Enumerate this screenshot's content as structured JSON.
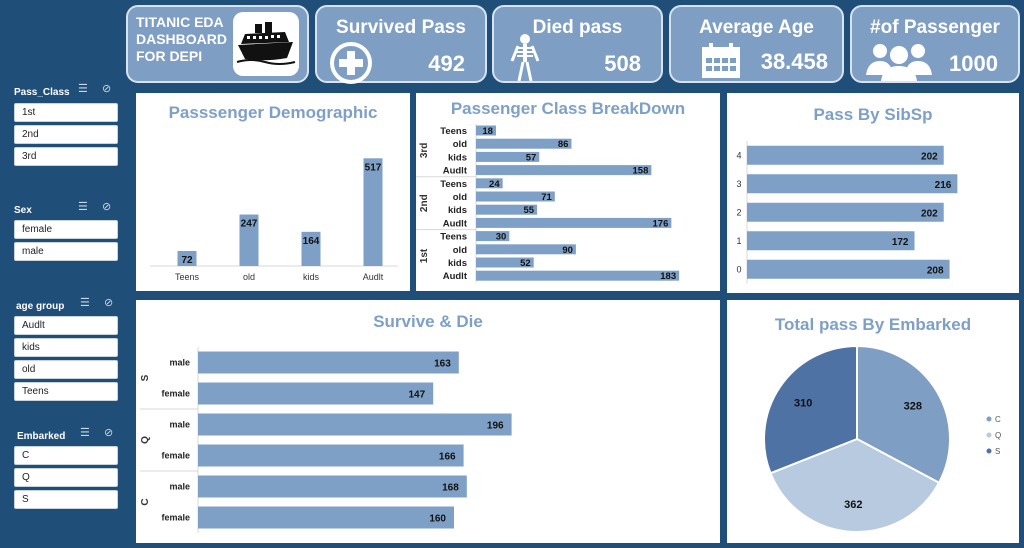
{
  "header": {
    "title_lines": [
      "TITANIC EDA",
      "DASHBOARD",
      "FOR DEPI"
    ],
    "ship_icon": "cruise-ship-icon"
  },
  "kpis": [
    {
      "label": "Survived Pass",
      "value": "492",
      "icon": "medical-cross-icon"
    },
    {
      "label": "Died pass",
      "value": "508",
      "icon": "skeleton-icon"
    },
    {
      "label": "Average Age",
      "value": "38.458",
      "icon": "calendar-icon"
    },
    {
      "label": "#of Passenger",
      "value": "1000",
      "icon": "people-group-icon"
    }
  ],
  "slicers": [
    {
      "title": "Pass_Class",
      "items": [
        "1st",
        "2nd",
        "3rd"
      ]
    },
    {
      "title": "Sex",
      "items": [
        "female",
        "male"
      ]
    },
    {
      "title": "age group",
      "items": [
        "Audlt",
        "kids",
        "old",
        "Teens"
      ]
    },
    {
      "title": "Embarked",
      "items": [
        "C",
        "Q",
        "S"
      ]
    }
  ],
  "colors": {
    "background": "#1f4e79",
    "card": "#7f9ec3",
    "bar": "#7fa0c6",
    "title": "#7fa0c6",
    "pie": [
      "#7f9ec3",
      "#b7cae0",
      "#4f72a5"
    ]
  },
  "chart_data": [
    {
      "type": "bar",
      "title": "Passsenger Demographic",
      "categories": [
        "Teens",
        "old",
        "kids",
        "Audlt"
      ],
      "values": [
        72,
        247,
        164,
        517
      ],
      "ylim": [
        0,
        600
      ]
    },
    {
      "type": "bar",
      "orientation": "horizontal",
      "title": "Passenger Class BreakDown",
      "groups": [
        {
          "name": "3rd",
          "categories": [
            "Teens",
            "old",
            "kids",
            "Audlt"
          ],
          "values": [
            18,
            86,
            57,
            158
          ]
        },
        {
          "name": "2nd",
          "categories": [
            "Teens",
            "old",
            "kids",
            "Audlt"
          ],
          "values": [
            24,
            71,
            55,
            176
          ]
        },
        {
          "name": "1st",
          "categories": [
            "Teens",
            "old",
            "kids",
            "Audlt"
          ],
          "values": [
            30,
            90,
            52,
            183
          ]
        }
      ],
      "xlim": [
        0,
        200
      ]
    },
    {
      "type": "bar",
      "orientation": "horizontal",
      "title": "Pass By SibSp",
      "categories": [
        "4",
        "3",
        "2",
        "1",
        "0"
      ],
      "values": [
        202,
        216,
        202,
        172,
        208
      ],
      "xlim": [
        0,
        230
      ]
    },
    {
      "type": "bar",
      "orientation": "horizontal",
      "title": "Survive & Die",
      "groups": [
        {
          "name": "S",
          "categories": [
            "male",
            "female"
          ],
          "values": [
            163,
            147
          ]
        },
        {
          "name": "Q",
          "categories": [
            "male",
            "female"
          ],
          "values": [
            196,
            166
          ]
        },
        {
          "name": "C",
          "categories": [
            "male",
            "female"
          ],
          "values": [
            168,
            160
          ]
        }
      ],
      "xlim": [
        0,
        250
      ]
    },
    {
      "type": "pie",
      "title": "Total pass By Embarked",
      "categories": [
        "C",
        "Q",
        "S"
      ],
      "values": [
        328,
        362,
        310
      ],
      "legend": "right"
    }
  ]
}
